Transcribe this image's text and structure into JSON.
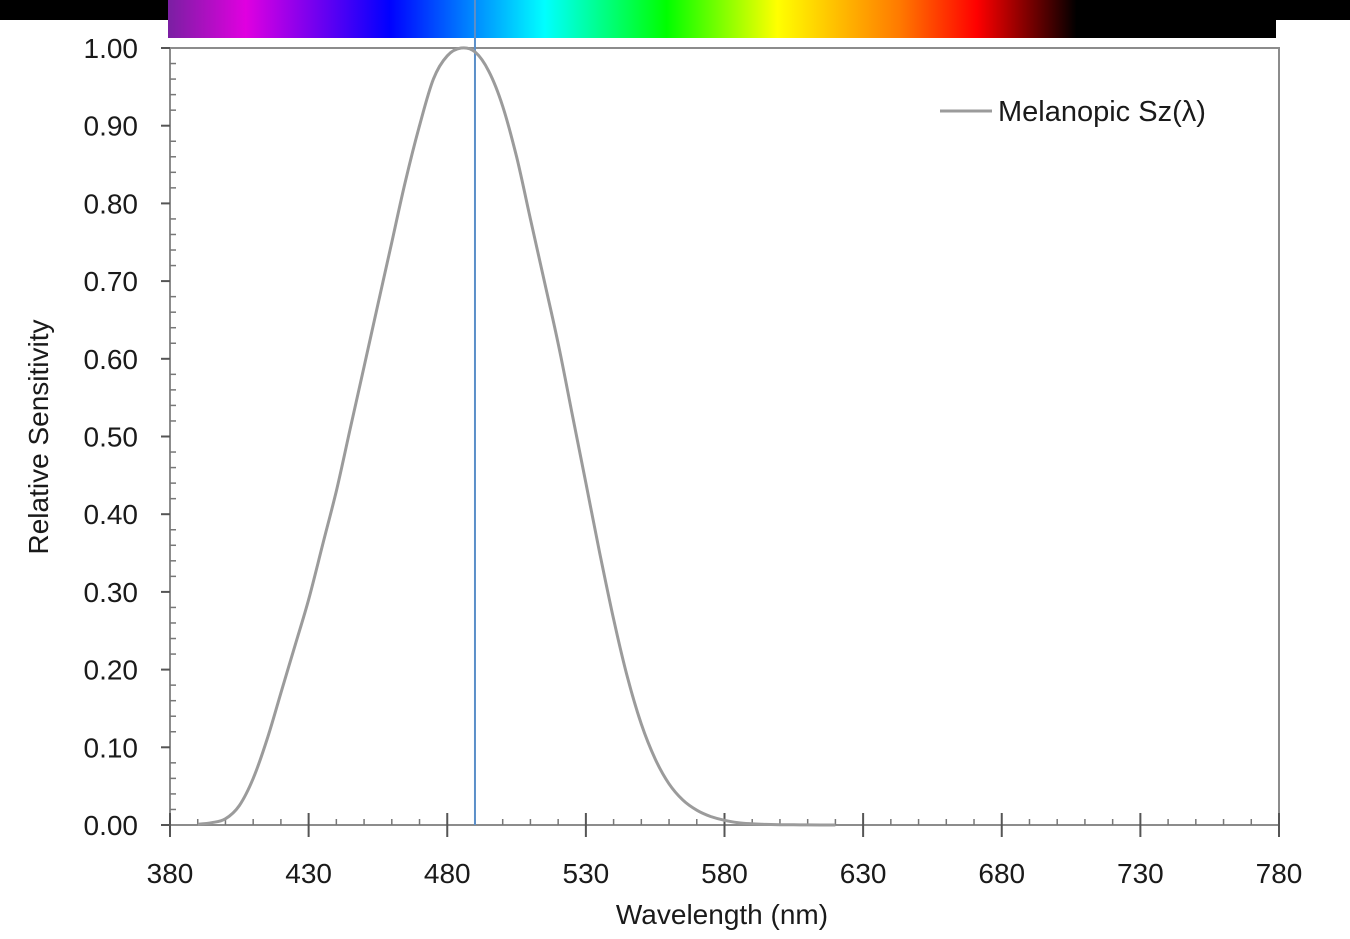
{
  "chart_data": {
    "type": "line",
    "title": "",
    "xlabel": "Wavelength (nm)",
    "ylabel": "Relative Sensitivity",
    "xlim": [
      380,
      780
    ],
    "ylim": [
      0,
      1
    ],
    "x_ticks": [
      380,
      430,
      480,
      530,
      580,
      630,
      680,
      730,
      780
    ],
    "x_tick_labels": [
      "380",
      "430",
      "480",
      "530",
      "580",
      "630",
      "680",
      "730",
      "780"
    ],
    "y_ticks": [
      0,
      0.1,
      0.2,
      0.3,
      0.4,
      0.5,
      0.6,
      0.7,
      0.8,
      0.9,
      1.0
    ],
    "y_tick_labels": [
      "0.00",
      "0.10",
      "0.20",
      "0.30",
      "0.40",
      "0.50",
      "0.60",
      "0.70",
      "0.80",
      "0.90",
      "1.00"
    ],
    "legend_position": "top-right",
    "grid": false,
    "reference_line": {
      "axis": "x",
      "value": 490,
      "color": "#5b8fc9"
    },
    "spectrum_band": {
      "from": 380,
      "to": 780
    },
    "series": [
      {
        "name": "Melanopic Sz(λ)",
        "color": "#9b9b9b",
        "x": [
          390,
          395,
          400,
          405,
          410,
          415,
          420,
          425,
          430,
          435,
          440,
          445,
          450,
          455,
          460,
          465,
          470,
          475,
          480,
          485,
          490,
          495,
          500,
          505,
          510,
          515,
          520,
          525,
          530,
          535,
          540,
          545,
          550,
          555,
          560,
          565,
          570,
          575,
          580,
          585,
          590,
          595,
          600,
          605,
          610,
          620
        ],
        "values": [
          0.001,
          0.003,
          0.008,
          0.025,
          0.06,
          0.11,
          0.17,
          0.23,
          0.29,
          0.36,
          0.43,
          0.51,
          0.59,
          0.67,
          0.75,
          0.83,
          0.9,
          0.96,
          0.99,
          1.0,
          0.995,
          0.97,
          0.925,
          0.86,
          0.78,
          0.7,
          0.62,
          0.53,
          0.44,
          0.35,
          0.265,
          0.19,
          0.13,
          0.085,
          0.053,
          0.032,
          0.019,
          0.011,
          0.006,
          0.003,
          0.0015,
          0.0008,
          0.0004,
          0.0002,
          0.0001,
          0.0
        ]
      }
    ]
  }
}
